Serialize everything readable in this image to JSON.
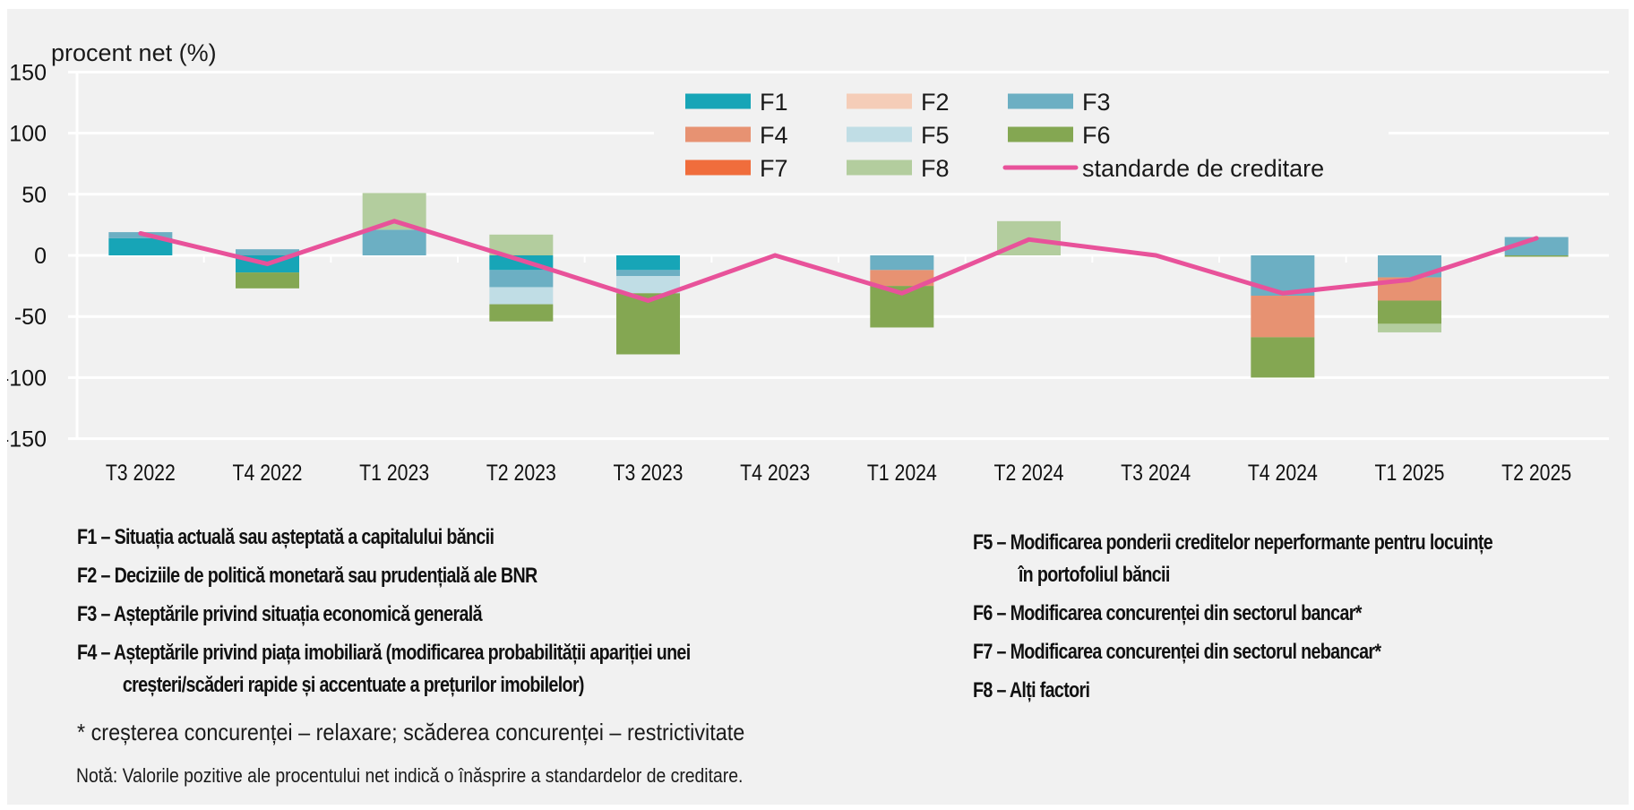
{
  "chart_data": {
    "type": "bar",
    "stacked": true,
    "title": "",
    "ylabel": "procent net (%)",
    "xlabel": "",
    "ylim": [
      -150,
      150
    ],
    "yticks": [
      150,
      100,
      50,
      0,
      -50,
      -100,
      -150
    ],
    "grid": true,
    "legend_position": "top-center",
    "categories": [
      "T3 2022",
      "T4 2022",
      "T1 2023",
      "T2 2023",
      "T3 2023",
      "T4 2023",
      "T1 2024",
      "T2 2024",
      "T3 2024",
      "T4 2024",
      "T1 2025",
      "T2 2025"
    ],
    "series": [
      {
        "name": "F1",
        "color": "#17a5b7",
        "values": [
          14,
          -14,
          0,
          -12,
          -12,
          0,
          0,
          0,
          0,
          0,
          0,
          0
        ]
      },
      {
        "name": "F2",
        "color": "#f5cdb8",
        "values": [
          0,
          0,
          0,
          0,
          0,
          0,
          0,
          0,
          0,
          0,
          0,
          0
        ]
      },
      {
        "name": "F3",
        "color": "#6cafc3",
        "values": [
          5,
          5,
          21,
          -14,
          -5,
          0,
          -12,
          0,
          0,
          -33,
          -18,
          15
        ]
      },
      {
        "name": "F4",
        "color": "#e79272",
        "values": [
          0,
          0,
          0,
          0,
          0,
          0,
          -13,
          0,
          0,
          -34,
          -19,
          0
        ]
      },
      {
        "name": "F5",
        "color": "#c0dde5",
        "values": [
          0,
          0,
          0,
          -14,
          -14,
          0,
          0,
          0,
          0,
          0,
          0,
          0
        ]
      },
      {
        "name": "F6",
        "color": "#84a752",
        "values": [
          0,
          -13,
          0,
          -14,
          -50,
          0,
          -34,
          0,
          0,
          -33,
          -19,
          -1
        ]
      },
      {
        "name": "F7",
        "color": "#f06d3c",
        "values": [
          0,
          0,
          0,
          0,
          0,
          0,
          0,
          0,
          0,
          0,
          0,
          0
        ]
      },
      {
        "name": "F8",
        "color": "#b3cd9e",
        "values": [
          0,
          0,
          30,
          17,
          0,
          0,
          0,
          28,
          0,
          0,
          -7,
          0
        ]
      }
    ],
    "line_series": {
      "name": "standarde de creditare",
      "color": "#e8529a",
      "values": [
        18,
        -7,
        28,
        -4,
        -37,
        0,
        -31,
        13,
        0,
        -31,
        -20,
        14
      ]
    }
  },
  "legend": {
    "items": [
      "F1",
      "F2",
      "F3",
      "F4",
      "F5",
      "F6",
      "F7",
      "F8",
      "standarde de creditare"
    ]
  },
  "notes": {
    "factors_left": [
      {
        "text": "F1 – Situația actuală sau așteptată a capitalului băncii"
      },
      {
        "text": "F2 – Deciziile de politică monetară sau prudențială ale BNR"
      },
      {
        "text": "F3 – Așteptările privind situația economică generală"
      },
      {
        "text": "F4 – Așteptările privind piața imobiliară (modificarea probabilității apariției unei",
        "cont": "creșteri/scăderi rapide și accentuate a prețurilor imobilelor)"
      }
    ],
    "factors_right": [
      {
        "text": "F5 – Modificarea ponderii creditelor neperformante pentru locuințe",
        "cont": "în portofoliul băncii"
      },
      {
        "text": "F6 – Modificarea concurenței din sectorul bancar*"
      },
      {
        "text": "F7 – Modificarea concurenței din sectorul nebancar*"
      },
      {
        "text": "F8 – Alți factori"
      }
    ],
    "footnote": "* creșterea concurenței – relaxare; scăderea concurenței – restrictivitate",
    "nota": "Notă: Valorile pozitive ale procentului net indică o înăsprire a standardelor de creditare."
  }
}
